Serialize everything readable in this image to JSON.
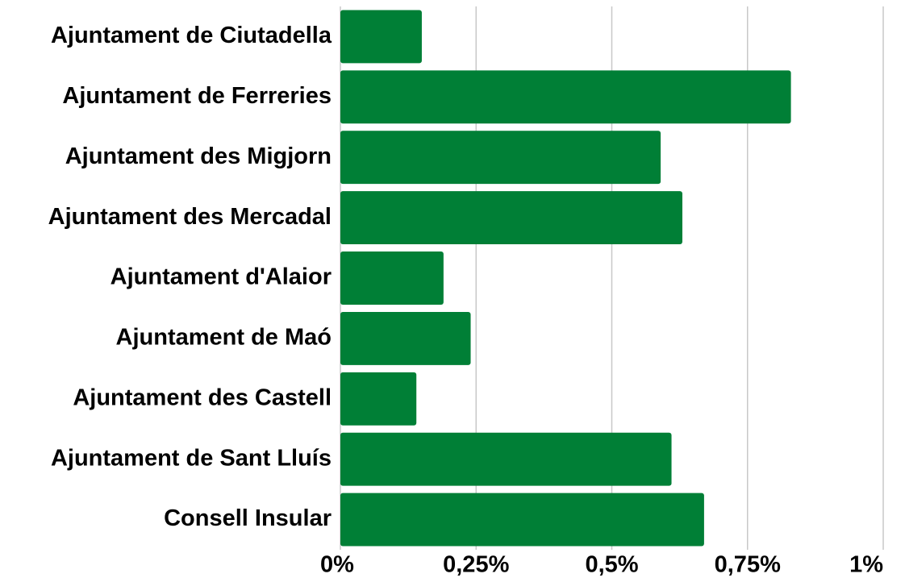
{
  "chart_data": {
    "type": "barh",
    "categories": [
      "Ajuntament de Ciutadella",
      "Ajuntament de Ferreries",
      "Ajuntament des Migjorn",
      "Ajuntament des Mercadal",
      "Ajuntament d'Alaior",
      "Ajuntament de Maó",
      "Ajuntament des Castell",
      "Ajuntament de Sant Lluís",
      "Consell Insular"
    ],
    "values": [
      0.15,
      0.83,
      0.59,
      0.63,
      0.19,
      0.24,
      0.14,
      0.61,
      0.67
    ],
    "color": "#007f36",
    "xlim": [
      0,
      1
    ],
    "xticks": [
      {
        "value": 0,
        "label": "0%"
      },
      {
        "value": 0.25,
        "label": "0,25%"
      },
      {
        "value": 0.5,
        "label": "0,5%"
      },
      {
        "value": 0.75,
        "label": "0,75%"
      },
      {
        "value": 1,
        "label": "1%"
      }
    ],
    "grid": true
  }
}
